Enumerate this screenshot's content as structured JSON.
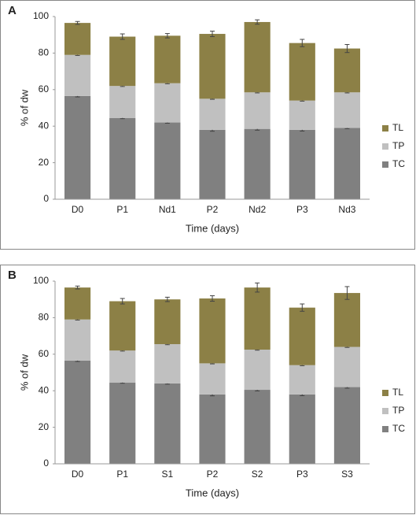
{
  "chart_data": [
    {
      "type": "bar",
      "stacked": true,
      "panel": "A",
      "categories": [
        "D0",
        "P1",
        "Nd1",
        "P2",
        "Nd2",
        "P3",
        "Nd3"
      ],
      "series": [
        {
          "name": "TC",
          "color": "#808080",
          "values": [
            56.5,
            44.5,
            42,
            38,
            38.5,
            38,
            39
          ],
          "errors": [
            0.5,
            0.4,
            0.4,
            0.8,
            0.7,
            0.7,
            0.4
          ]
        },
        {
          "name": "TP",
          "color": "#c0c0c0",
          "values": [
            22.5,
            17.5,
            21.5,
            17,
            20,
            16,
            19.5
          ],
          "errors": [
            0.3,
            0.3,
            0.3,
            0.3,
            0.3,
            0.3,
            0.3
          ]
        },
        {
          "name": "TL",
          "color": "#8c8046",
          "values": [
            17.5,
            27,
            26,
            35.5,
            38.5,
            31.5,
            24
          ],
          "errors": [
            0.8,
            1.5,
            1.2,
            1.5,
            1.2,
            2,
            2.2
          ]
        }
      ],
      "xlabel": "Time (days)",
      "ylabel": "% of dw",
      "ylim": [
        0,
        100
      ],
      "yticks": [
        0,
        20,
        40,
        60,
        80,
        100
      ],
      "legend": "right"
    },
    {
      "type": "bar",
      "stacked": true,
      "panel": "B",
      "categories": [
        "D0",
        "P1",
        "S1",
        "P2",
        "S2",
        "P3",
        "S3"
      ],
      "series": [
        {
          "name": "TC",
          "color": "#808080",
          "values": [
            56.5,
            44.5,
            44,
            38,
            40.5,
            38,
            42
          ],
          "errors": [
            0.5,
            0.4,
            0.4,
            0.8,
            0.6,
            0.7,
            0.6
          ]
        },
        {
          "name": "TP",
          "color": "#c0c0c0",
          "values": [
            22.5,
            17.5,
            21.5,
            17,
            22,
            16,
            22
          ],
          "errors": [
            0.3,
            0.3,
            0.3,
            0.3,
            0.3,
            0.3,
            0.3
          ]
        },
        {
          "name": "TL",
          "color": "#8c8046",
          "values": [
            17.5,
            27,
            24.5,
            35.5,
            34,
            31.5,
            29.5
          ],
          "errors": [
            0.8,
            1.5,
            1.2,
            1.5,
            2.5,
            2,
            3.5
          ]
        }
      ],
      "xlabel": "Time (days)",
      "ylabel": "% of dw",
      "ylim": [
        0,
        100
      ],
      "yticks": [
        0,
        20,
        40,
        60,
        80,
        100
      ],
      "legend": "right"
    }
  ]
}
